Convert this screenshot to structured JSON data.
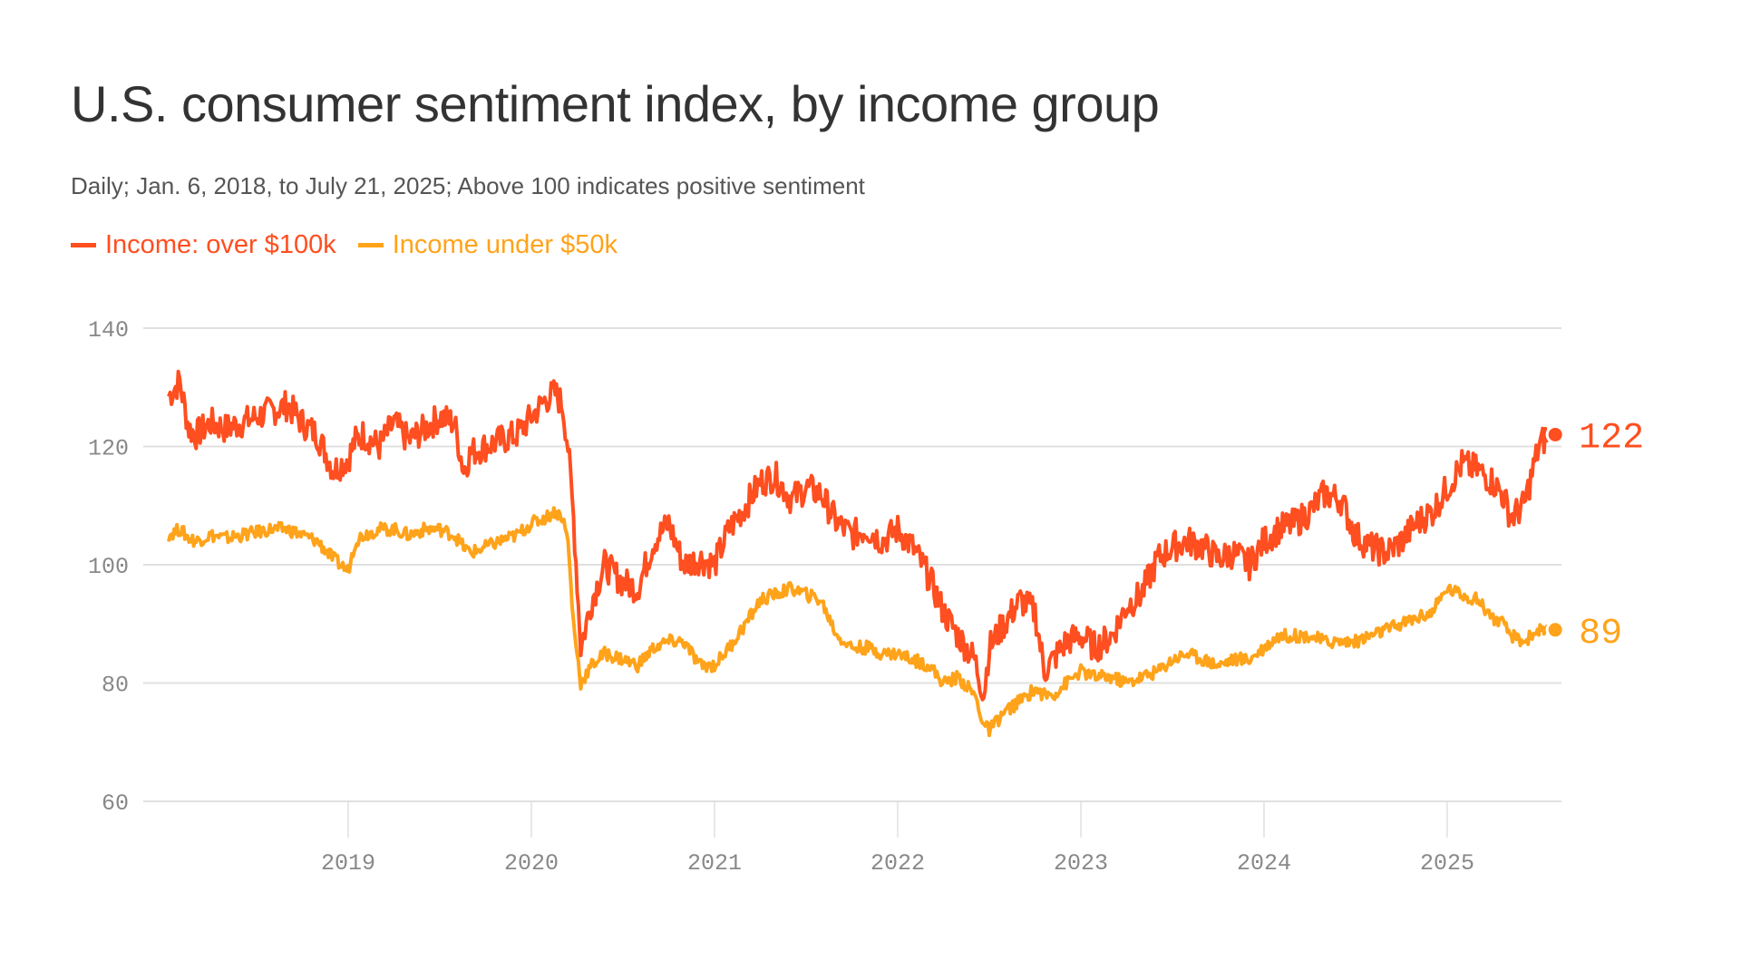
{
  "chart_data": {
    "type": "line",
    "title": "U.S. consumer sentiment index, by income group",
    "subtitle": "Daily; Jan. 6, 2018, to July 21, 2025; Above 100 indicates positive sentiment",
    "xlabel": "",
    "ylabel": "",
    "ylim": [
      60,
      140
    ],
    "xlim": [
      2018.0,
      2025.58
    ],
    "yticks": [
      "60",
      "80",
      "100",
      "120",
      "140"
    ],
    "ytick_values": [
      60,
      80,
      100,
      120,
      140
    ],
    "xticks": [
      "2019",
      "2020",
      "2021",
      "2022",
      "2023",
      "2024",
      "2025"
    ],
    "xtick_values": [
      2019,
      2020,
      2021,
      2022,
      2023,
      2024,
      2025
    ],
    "grid": "horizontal",
    "legend_position": "top-left",
    "x": [
      2018.02,
      2018.08,
      2018.13,
      2018.17,
      2018.25,
      2018.33,
      2018.42,
      2018.5,
      2018.58,
      2018.67,
      2018.75,
      2018.83,
      2018.92,
      2019.0,
      2019.04,
      2019.08,
      2019.17,
      2019.25,
      2019.33,
      2019.42,
      2019.5,
      2019.58,
      2019.63,
      2019.67,
      2019.75,
      2019.83,
      2019.92,
      2020.0,
      2020.08,
      2020.13,
      2020.17,
      2020.2,
      2020.23,
      2020.27,
      2020.33,
      2020.4,
      2020.5,
      2020.58,
      2020.67,
      2020.75,
      2020.83,
      2020.92,
      2021.0,
      2021.08,
      2021.17,
      2021.25,
      2021.33,
      2021.42,
      2021.5,
      2021.58,
      2021.67,
      2021.75,
      2021.83,
      2021.92,
      2022.0,
      2022.08,
      2022.17,
      2022.25,
      2022.33,
      2022.42,
      2022.47,
      2022.5,
      2022.58,
      2022.67,
      2022.75,
      2022.8,
      2022.85,
      2022.92,
      2023.0,
      2023.08,
      2023.17,
      2023.25,
      2023.33,
      2023.42,
      2023.5,
      2023.58,
      2023.67,
      2023.75,
      2023.83,
      2023.92,
      2024.0,
      2024.08,
      2024.17,
      2024.25,
      2024.33,
      2024.42,
      2024.5,
      2024.58,
      2024.67,
      2024.75,
      2024.83,
      2024.92,
      2025.0,
      2025.08,
      2025.17,
      2025.25,
      2025.3,
      2025.35,
      2025.42,
      2025.5,
      2025.55
    ],
    "series": [
      {
        "name": "Income: over $100k",
        "color": "#ff4e1f",
        "end_value": 122,
        "values": [
          128.5,
          131,
          123,
          122,
          124,
          123,
          124,
          125,
          126,
          127,
          124,
          122,
          116,
          118,
          121,
          122,
          120,
          124,
          121,
          123,
          125,
          124,
          116,
          119,
          120,
          121,
          122,
          125,
          128,
          129,
          127,
          120,
          108,
          86,
          94,
          100,
          97,
          96,
          104,
          107,
          100,
          101,
          100,
          106,
          110,
          114,
          115,
          111,
          113,
          112,
          107,
          105,
          106,
          104,
          106,
          103,
          98,
          92,
          88,
          84,
          78,
          86,
          90,
          94,
          92,
          82,
          84,
          87,
          88,
          86,
          88,
          93,
          95,
          101,
          103,
          104,
          103,
          101,
          102,
          100,
          104,
          106,
          107,
          109,
          112,
          111,
          105,
          103,
          102,
          104,
          107,
          109,
          113,
          117,
          116,
          114,
          112,
          108,
          110,
          120,
          122
        ]
      },
      {
        "name": "Income under $50k",
        "color": "#ffa31a",
        "end_value": 89,
        "values": [
          105,
          106,
          104.5,
          104,
          105,
          104.5,
          105,
          105.5,
          106,
          106,
          105,
          104,
          101,
          99,
          104,
          105,
          106,
          106,
          105,
          106,
          106,
          105,
          103,
          102,
          103,
          104,
          105,
          107,
          108,
          109,
          108,
          104,
          90,
          80,
          83,
          85,
          84,
          83,
          86,
          87,
          87,
          83,
          83,
          86,
          90,
          94,
          95,
          96,
          95,
          94,
          88,
          86,
          86,
          85,
          85,
          84,
          83,
          80,
          81,
          78,
          73,
          72,
          75,
          77,
          79,
          78,
          78,
          80,
          82,
          81,
          81,
          80,
          81,
          82,
          84,
          85,
          84,
          83,
          84,
          84,
          86,
          88,
          88,
          88,
          87,
          87,
          87,
          88,
          89,
          90,
          91,
          92,
          96,
          95,
          94,
          91,
          90,
          88,
          87,
          89,
          88.5
        ]
      }
    ]
  }
}
